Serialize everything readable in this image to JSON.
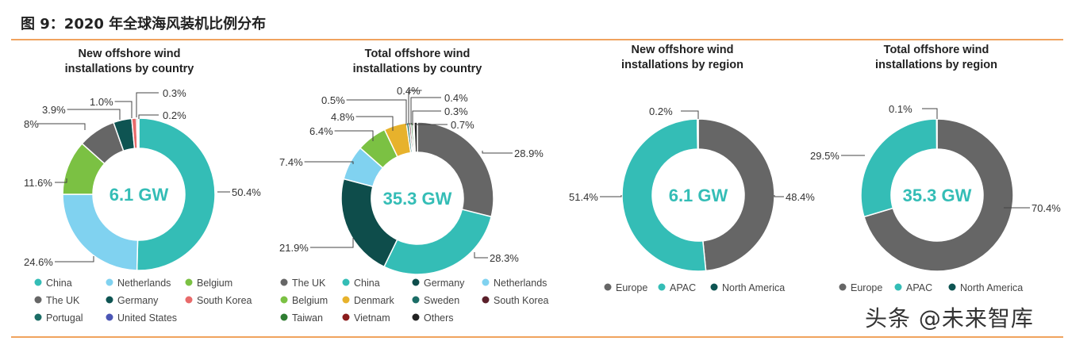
{
  "figure_title": "图 9：2020 年全球海风装机比例分布",
  "watermark": "头条 @未来智库",
  "chart_data": [
    {
      "type": "pie",
      "title_lines": [
        "New offshore wind",
        "installations by country"
      ],
      "center_label": "6.1 GW",
      "slices": [
        {
          "name": "China",
          "label": "50.4%",
          "value": 50.4,
          "color": "#34bdb6"
        },
        {
          "name": "Netherlands",
          "label": "24.6%",
          "value": 24.6,
          "color": "#80d2f0"
        },
        {
          "name": "Belgium",
          "label": "11.6%",
          "value": 11.6,
          "color": "#7bc143"
        },
        {
          "name": "The UK",
          "label": "8%",
          "value": 8.0,
          "color": "#666666"
        },
        {
          "name": "Germany",
          "label": "3.9%",
          "value": 3.9,
          "color": "#0e5452"
        },
        {
          "name": "South Korea",
          "label": "1.0%",
          "value": 1.0,
          "color": "#e86a6a"
        },
        {
          "name": "Portugal",
          "label": "0.3%",
          "value": 0.3,
          "color": "#1b6d66"
        },
        {
          "name": "United States",
          "label": "0.2%",
          "value": 0.2,
          "color": "#4b56b5"
        }
      ],
      "legend": [
        "China",
        "Netherlands",
        "Belgium",
        "The UK",
        "Germany",
        "South Korea",
        "Portugal",
        "United States"
      ]
    },
    {
      "type": "pie",
      "title_lines": [
        "Total offshore wind",
        "installations by country"
      ],
      "center_label": "35.3 GW",
      "slices": [
        {
          "name": "The UK",
          "label": "28.9%",
          "value": 28.9,
          "color": "#666666"
        },
        {
          "name": "China",
          "label": "28.3%",
          "value": 28.3,
          "color": "#34bdb6"
        },
        {
          "name": "Germany",
          "label": "21.9%",
          "value": 21.9,
          "color": "#0e4d4b"
        },
        {
          "name": "Netherlands",
          "label": "7.4%",
          "value": 7.4,
          "color": "#80d2f0"
        },
        {
          "name": "Belgium",
          "label": "6.4%",
          "value": 6.4,
          "color": "#7bc143"
        },
        {
          "name": "Denmark",
          "label": "4.8%",
          "value": 4.8,
          "color": "#e7b22c"
        },
        {
          "name": "Sweden",
          "label": "0.5%",
          "value": 0.5,
          "color": "#1b6d66"
        },
        {
          "name": "South Korea",
          "label": "0.4%",
          "value": 0.4,
          "color": "#5a1f2a"
        },
        {
          "name": "Taiwan",
          "label": "0.4%",
          "value": 0.4,
          "color": "#2f7d32"
        },
        {
          "name": "Vietnam",
          "label": "0.3%",
          "value": 0.3,
          "color": "#8b1c1c"
        },
        {
          "name": "Others",
          "label": "0.7%",
          "value": 0.7,
          "color": "#222222"
        }
      ],
      "legend": [
        "The UK",
        "China",
        "Germany",
        "Netherlands",
        "Belgium",
        "Denmark",
        "Sweden",
        "South Korea",
        "Taiwan",
        "Vietnam",
        "Others"
      ]
    },
    {
      "type": "pie",
      "title_lines": [
        "New offshore wind",
        "installations by region"
      ],
      "center_label": "6.1 GW",
      "slices": [
        {
          "name": "Europe",
          "label": "48.4%",
          "value": 48.4,
          "color": "#666666"
        },
        {
          "name": "APAC",
          "label": "51.4%",
          "value": 51.4,
          "color": "#34bdb6"
        },
        {
          "name": "North America",
          "label": "0.2%",
          "value": 0.2,
          "color": "#0e5452"
        }
      ],
      "legend": [
        "Europe",
        "APAC",
        "North America"
      ]
    },
    {
      "type": "pie",
      "title_lines": [
        "Total offshore wind",
        "installations by region"
      ],
      "center_label": "35.3 GW",
      "slices": [
        {
          "name": "Europe",
          "label": "70.4%",
          "value": 70.4,
          "color": "#666666"
        },
        {
          "name": "APAC",
          "label": "29.5%",
          "value": 29.5,
          "color": "#34bdb6"
        },
        {
          "name": "North America",
          "label": "0.1%",
          "value": 0.1,
          "color": "#0e5452"
        }
      ],
      "legend": [
        "Europe",
        "APAC",
        "North America"
      ]
    }
  ]
}
